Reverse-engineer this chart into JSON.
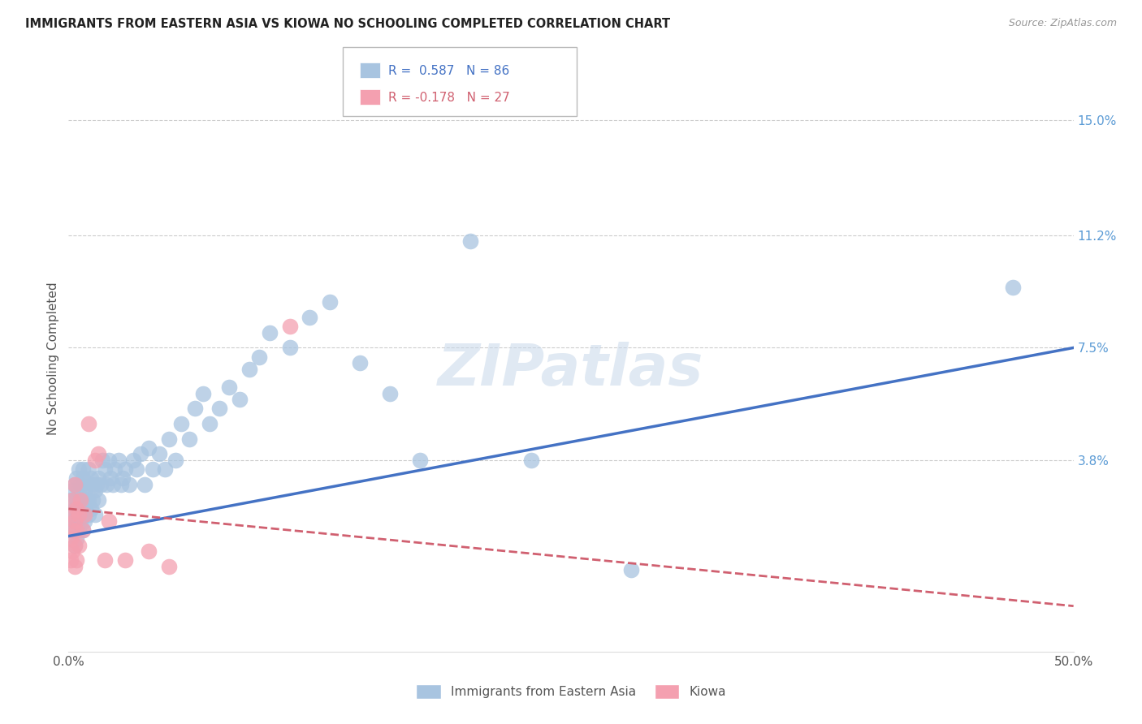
{
  "title": "IMMIGRANTS FROM EASTERN ASIA VS KIOWA NO SCHOOLING COMPLETED CORRELATION CHART",
  "source": "Source: ZipAtlas.com",
  "ylabel": "No Schooling Completed",
  "ytick_labels": [
    "15.0%",
    "11.2%",
    "7.5%",
    "3.8%"
  ],
  "ytick_values": [
    0.15,
    0.112,
    0.075,
    0.038
  ],
  "xlim": [
    0.0,
    0.5
  ],
  "ylim": [
    -0.025,
    0.168
  ],
  "color_blue": "#a8c4e0",
  "color_pink": "#f4a0b0",
  "color_line_blue": "#4472c4",
  "color_line_pink": "#d06070",
  "color_ytick": "#5b9bd5",
  "watermark": "ZIPatlas",
  "blue_line_x0": 0.0,
  "blue_line_y0": 0.013,
  "blue_line_x1": 0.5,
  "blue_line_y1": 0.075,
  "pink_line_x0": 0.0,
  "pink_line_y0": 0.022,
  "pink_line_x1": 0.5,
  "pink_line_y1": -0.01,
  "blue_points_x": [
    0.001,
    0.001,
    0.002,
    0.002,
    0.002,
    0.003,
    0.003,
    0.003,
    0.003,
    0.004,
    0.004,
    0.004,
    0.004,
    0.005,
    0.005,
    0.005,
    0.005,
    0.006,
    0.006,
    0.006,
    0.007,
    0.007,
    0.007,
    0.007,
    0.007,
    0.008,
    0.008,
    0.008,
    0.009,
    0.009,
    0.01,
    0.01,
    0.01,
    0.011,
    0.011,
    0.012,
    0.012,
    0.013,
    0.013,
    0.014,
    0.015,
    0.015,
    0.016,
    0.017,
    0.018,
    0.019,
    0.02,
    0.021,
    0.022,
    0.023,
    0.025,
    0.026,
    0.027,
    0.028,
    0.03,
    0.032,
    0.034,
    0.036,
    0.038,
    0.04,
    0.042,
    0.045,
    0.048,
    0.05,
    0.053,
    0.056,
    0.06,
    0.063,
    0.067,
    0.07,
    0.075,
    0.08,
    0.085,
    0.09,
    0.095,
    0.1,
    0.11,
    0.12,
    0.13,
    0.145,
    0.16,
    0.175,
    0.2,
    0.23,
    0.28,
    0.47
  ],
  "blue_points_y": [
    0.018,
    0.025,
    0.02,
    0.028,
    0.015,
    0.022,
    0.03,
    0.016,
    0.01,
    0.025,
    0.032,
    0.018,
    0.012,
    0.028,
    0.02,
    0.035,
    0.015,
    0.03,
    0.022,
    0.018,
    0.032,
    0.025,
    0.02,
    0.015,
    0.035,
    0.028,
    0.022,
    0.018,
    0.03,
    0.025,
    0.035,
    0.025,
    0.02,
    0.032,
    0.022,
    0.03,
    0.025,
    0.028,
    0.02,
    0.03,
    0.032,
    0.025,
    0.03,
    0.038,
    0.035,
    0.03,
    0.038,
    0.032,
    0.03,
    0.035,
    0.038,
    0.03,
    0.032,
    0.035,
    0.03,
    0.038,
    0.035,
    0.04,
    0.03,
    0.042,
    0.035,
    0.04,
    0.035,
    0.045,
    0.038,
    0.05,
    0.045,
    0.055,
    0.06,
    0.05,
    0.055,
    0.062,
    0.058,
    0.068,
    0.072,
    0.08,
    0.075,
    0.085,
    0.09,
    0.07,
    0.06,
    0.038,
    0.11,
    0.038,
    0.002,
    0.095
  ],
  "pink_points_x": [
    0.001,
    0.001,
    0.001,
    0.002,
    0.002,
    0.002,
    0.003,
    0.003,
    0.003,
    0.003,
    0.004,
    0.004,
    0.004,
    0.005,
    0.005,
    0.006,
    0.007,
    0.008,
    0.01,
    0.013,
    0.015,
    0.018,
    0.02,
    0.028,
    0.04,
    0.05,
    0.11
  ],
  "pink_points_y": [
    0.02,
    0.012,
    0.005,
    0.025,
    0.015,
    0.008,
    0.03,
    0.018,
    0.01,
    0.003,
    0.022,
    0.015,
    0.005,
    0.02,
    0.01,
    0.025,
    0.015,
    0.02,
    0.05,
    0.038,
    0.04,
    0.005,
    0.018,
    0.005,
    0.008,
    0.003,
    0.082
  ]
}
